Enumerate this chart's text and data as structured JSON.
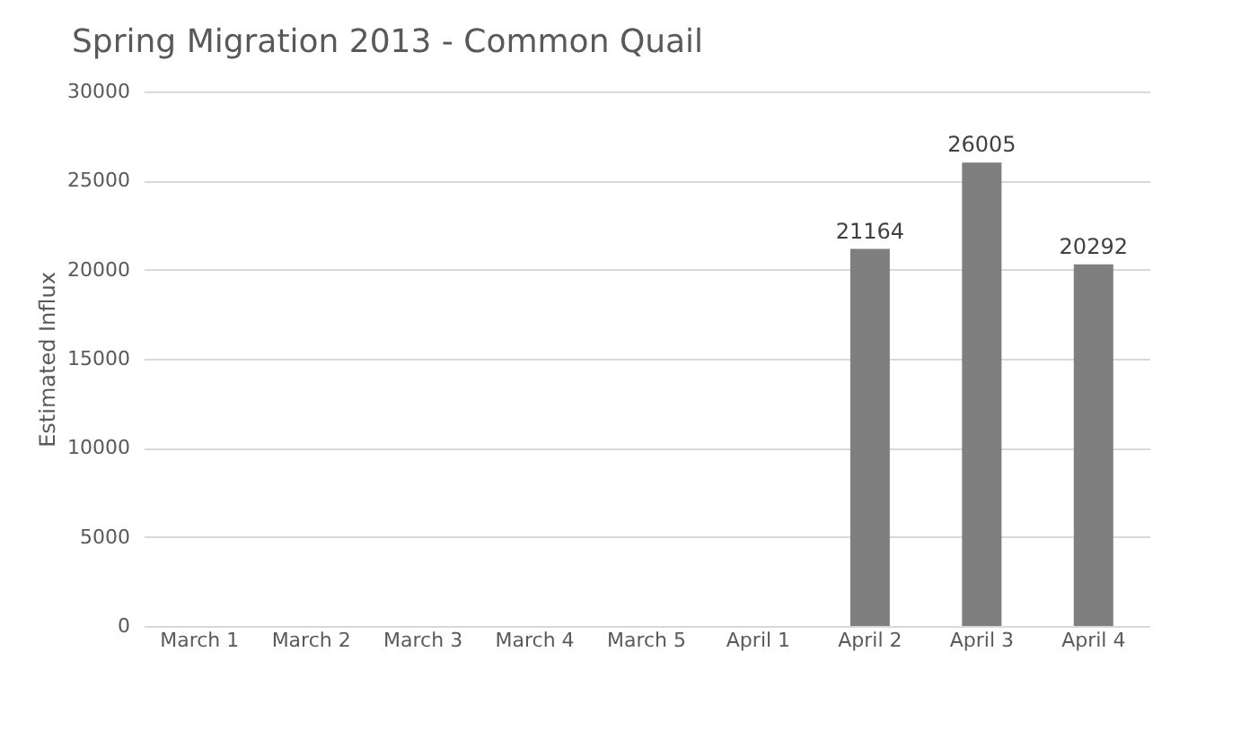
{
  "chart_data": {
    "type": "bar",
    "title": "Spring Migration 2013 - Common Quail",
    "ylabel": "Estimated Influx",
    "categories": [
      "March 1",
      "March 2",
      "March 3",
      "March 4",
      "March 5",
      "April 1",
      "April 2",
      "April 3",
      "April 4"
    ],
    "values": [
      0,
      0,
      0,
      0,
      0,
      0,
      21164,
      26005,
      20292
    ],
    "value_labels": [
      null,
      null,
      null,
      null,
      null,
      null,
      "21164",
      "26005",
      "20292"
    ],
    "color": "#7f7f7f",
    "ylim": [
      0,
      30000
    ],
    "yticks": [
      0,
      5000,
      10000,
      15000,
      20000,
      25000,
      30000
    ],
    "grid": "y"
  }
}
